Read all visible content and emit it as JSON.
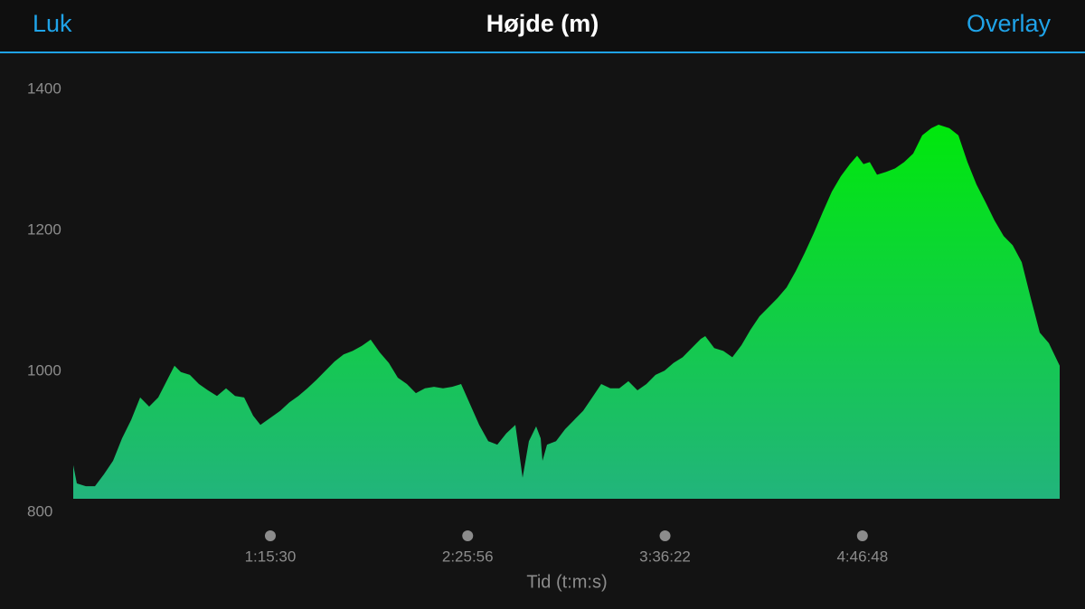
{
  "header": {
    "left_button": "Luk",
    "right_button": "Overlay"
  },
  "chart_data": {
    "type": "area",
    "title": "Højde (m)",
    "x_label": "Tid (t:m:s)",
    "gradient": [
      "#00e80c",
      "#22b47c"
    ],
    "xlim": [
      310,
      21432
    ],
    "ylim": [
      800,
      1400
    ],
    "yticks": [
      800,
      1000,
      1200,
      1400
    ],
    "xticks": [
      {
        "value": 4530,
        "label": "1:15:30"
      },
      {
        "value": 8756,
        "label": "2:25:56"
      },
      {
        "value": 12982,
        "label": "3:36:22"
      },
      {
        "value": 17208,
        "label": "4:46:48"
      }
    ],
    "x": [
      310,
      387,
      581,
      775,
      968,
      1162,
      1355,
      1549,
      1743,
      1936,
      2130,
      2323,
      2478,
      2614,
      2807,
      3001,
      3195,
      3388,
      3582,
      3776,
      3969,
      4163,
      4318,
      4550,
      4743,
      4937,
      5131,
      5324,
      5518,
      5711,
      5905,
      6099,
      6292,
      6486,
      6679,
      6873,
      7067,
      7260,
      7454,
      7647,
      7841,
      8035,
      8228,
      8422,
      8615,
      8809,
      9003,
      9196,
      9390,
      9583,
      9777,
      9932,
      10067,
      10222,
      10319,
      10358,
      10455,
      10648,
      10842,
      11035,
      11229,
      11423,
      11616,
      11810,
      12003,
      12197,
      12391,
      12584,
      12778,
      12971,
      13165,
      13359,
      13552,
      13746,
      13843,
      14036,
      14230,
      14423,
      14617,
      14811,
      15004,
      15198,
      15391,
      15585,
      15779,
      15972,
      16166,
      16359,
      16553,
      16747,
      16940,
      17095,
      17231,
      17366,
      17521,
      17715,
      17908,
      18102,
      18295,
      18489,
      18683,
      18838,
      19070,
      19263,
      19457,
      19651,
      19844,
      20038,
      20232,
      20425,
      20619,
      20812,
      21006,
      21200,
      21432
    ],
    "values": [
      867,
      841,
      837,
      837,
      854,
      873,
      905,
      931,
      963,
      950,
      963,
      988,
      1008,
      999,
      995,
      982,
      973,
      965,
      976,
      965,
      963,
      937,
      924,
      935,
      944,
      956,
      965,
      976,
      988,
      1001,
      1014,
      1024,
      1029,
      1036,
      1045,
      1027,
      1012,
      991,
      982,
      969,
      976,
      978,
      976,
      978,
      982,
      953,
      924,
      901,
      896,
      912,
      924,
      849,
      901,
      922,
      905,
      873,
      896,
      901,
      918,
      931,
      944,
      963,
      982,
      976,
      976,
      986,
      973,
      982,
      995,
      1001,
      1012,
      1020,
      1033,
      1046,
      1050,
      1033,
      1029,
      1020,
      1037,
      1059,
      1078,
      1091,
      1104,
      1119,
      1142,
      1168,
      1196,
      1226,
      1255,
      1277,
      1294,
      1306,
      1294,
      1297,
      1279,
      1283,
      1288,
      1297,
      1309,
      1335,
      1345,
      1350,
      1345,
      1335,
      1297,
      1265,
      1240,
      1214,
      1192,
      1179,
      1155,
      1104,
      1055,
      1040,
      1008
    ]
  }
}
